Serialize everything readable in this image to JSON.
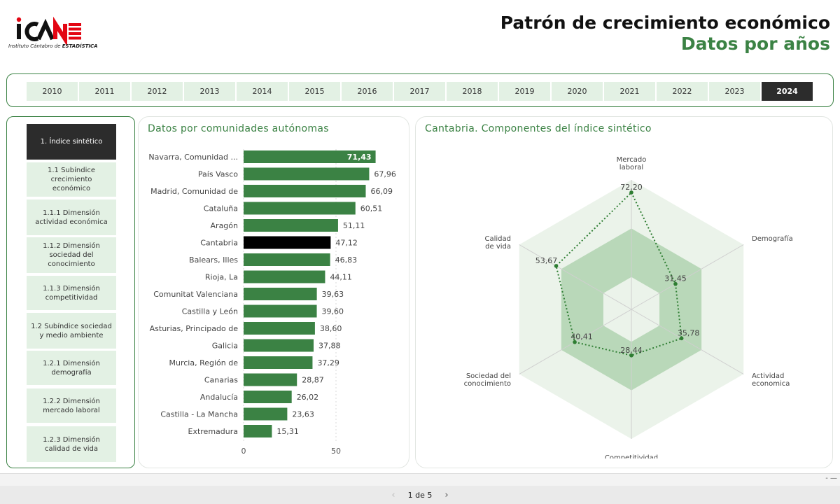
{
  "header": {
    "logo_text_prefix": "Instituto Cántabro de ",
    "logo_text_bold": "ESTADÍSTICA",
    "title": "Patrón de crecimiento económico",
    "subtitle": "Datos por años"
  },
  "years": [
    "2010",
    "2011",
    "2012",
    "2013",
    "2014",
    "2015",
    "2016",
    "2017",
    "2018",
    "2019",
    "2020",
    "2021",
    "2022",
    "2023",
    "2024"
  ],
  "selected_year": "2024",
  "menu": [
    {
      "label": "1. Índice sintético",
      "active": true
    },
    {
      "label": "1.1 Subíndice crecimiento económico",
      "active": false
    },
    {
      "label": "1.1.1 Dimensión actividad económica",
      "active": false
    },
    {
      "label": "1.1.2 Dimensión sociedad del conocimiento",
      "active": false
    },
    {
      "label": "1.1.3 Dimensión competitividad",
      "active": false
    },
    {
      "label": "1.2 Subíndice sociedad y medio ambiente",
      "active": false
    },
    {
      "label": "1.2.1 Dimensión demografía",
      "active": false
    },
    {
      "label": "1.2.2 Dimensión mercado laboral",
      "active": false
    },
    {
      "label": "1.2.3 Dimensión calidad de vida",
      "active": false
    }
  ],
  "panels": {
    "bar_title": "Datos por comunidades autónomas",
    "radar_title": "Cantabria. Componentes del índice sintético"
  },
  "colors": {
    "accent": "#3b8244",
    "bar": "#3b8244",
    "highlight_bar": "#000000",
    "tab_bg": "#e3f1e4",
    "tab_active": "#2c2c2c"
  },
  "chart_data": [
    {
      "type": "bar",
      "orientation": "horizontal",
      "categories": [
        "Navarra, Comunidad ...",
        "País Vasco",
        "Madrid, Comunidad de",
        "Cataluña",
        "Aragón",
        "Cantabria",
        "Balears, Illes",
        "Rioja, La",
        "Comunitat Valenciana",
        "Castilla y León",
        "Asturias, Principado de",
        "Galicia",
        "Murcia, Región de",
        "Canarias",
        "Andalucía",
        "Castilla - La Mancha",
        "Extremadura"
      ],
      "values": [
        71.43,
        67.96,
        66.09,
        60.51,
        51.11,
        47.12,
        46.83,
        44.11,
        39.63,
        39.6,
        38.6,
        37.88,
        37.29,
        28.87,
        26.02,
        23.63,
        15.31
      ],
      "value_labels": [
        "71,43",
        "67,96",
        "66,09",
        "60,51",
        "51,11",
        "47,12",
        "46,83",
        "44,11",
        "39,63",
        "39,60",
        "38,60",
        "37,88",
        "37,29",
        "28,87",
        "26,02",
        "23,63",
        "15,31"
      ],
      "highlight": "Cantabria",
      "xlim": [
        0,
        75
      ],
      "x_ticks": [
        0,
        50
      ],
      "x_tick_labels": [
        "0",
        "50"
      ]
    },
    {
      "type": "radar",
      "axes": [
        "Mercado laboral",
        "Demografía",
        "Actividad económica",
        "Competitividad",
        "Sociedad del conocimiento",
        "Calidad de vida"
      ],
      "axis_label_lines": [
        [
          "Mercado",
          "laboral"
        ],
        [
          "Demografía"
        ],
        [
          "Actividad",
          "economica"
        ],
        [
          "Competitividad"
        ],
        [
          "Sociedad del",
          "conocimiento"
        ],
        [
          "Calidad",
          "de vida"
        ]
      ],
      "values": [
        72.2,
        31.45,
        35.78,
        28.44,
        40.41,
        53.67
      ],
      "value_labels": [
        "72,20",
        "31,45",
        "35,78",
        "28,44",
        "40,41",
        "53,67"
      ],
      "rmax": 80,
      "bands": [
        [
          0,
          20
        ],
        [
          20,
          50
        ],
        [
          50,
          80
        ]
      ]
    }
  ],
  "pager": {
    "text": "1 de 5",
    "prev": "‹",
    "next": "›"
  },
  "bottom_dash": "- —"
}
